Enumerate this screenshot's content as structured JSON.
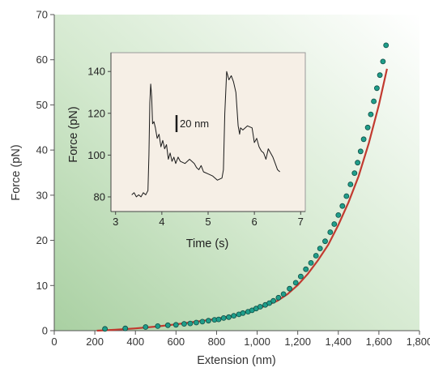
{
  "chart_data": [
    {
      "type": "scatter",
      "title": "",
      "xlabel": "Extension (nm)",
      "ylabel": "Force (pN)",
      "xlim": [
        0,
        1800
      ],
      "ylim": [
        0,
        70
      ],
      "x_ticks": [
        0,
        200,
        400,
        600,
        800,
        1000,
        1200,
        1400,
        1600,
        1800
      ],
      "x_tick_labels": [
        "0",
        "200",
        "400",
        "600",
        "800",
        "1,000",
        "1,200",
        "1,400",
        "1,600",
        "1,800"
      ],
      "y_ticks": [
        0,
        10,
        20,
        30,
        40,
        50,
        60,
        70
      ],
      "y_tick_labels": [
        "0",
        "10",
        "20",
        "30",
        "40",
        "50",
        "60",
        "70"
      ],
      "grid": false,
      "background": "green gradient",
      "series": [
        {
          "kind": "points",
          "marker_color": "#1f9e8a",
          "x": [
            250,
            350,
            450,
            510,
            560,
            600,
            640,
            670,
            700,
            730,
            760,
            790,
            810,
            835,
            860,
            885,
            910,
            930,
            955,
            975,
            995,
            1015,
            1040,
            1060,
            1080,
            1105,
            1130,
            1160,
            1190,
            1215,
            1240,
            1265,
            1290,
            1310,
            1335,
            1360,
            1380,
            1400,
            1420,
            1440,
            1460,
            1480,
            1495,
            1510,
            1525,
            1545,
            1560,
            1575,
            1590,
            1605,
            1620,
            1635
          ],
          "y": [
            0.4,
            0.5,
            0.8,
            1.0,
            1.2,
            1.3,
            1.5,
            1.6,
            1.8,
            2.0,
            2.2,
            2.4,
            2.5,
            2.8,
            3.0,
            3.3,
            3.6,
            3.9,
            4.2,
            4.5,
            4.9,
            5.3,
            5.7,
            6.1,
            6.6,
            7.3,
            8.1,
            9.3,
            10.6,
            12.0,
            13.6,
            15.0,
            16.6,
            18.2,
            19.8,
            21.8,
            23.6,
            25.6,
            27.6,
            29.8,
            32.4,
            34.9,
            37.2,
            39.7,
            42.4,
            45.0,
            47.9,
            50.8,
            53.7,
            56.6,
            59.6,
            63.2
          ]
        },
        {
          "kind": "fit-line",
          "line_color": "#c23a30",
          "x": [
            210,
            300,
            400,
            500,
            600,
            700,
            800,
            900,
            1000,
            1100,
            1150,
            1200,
            1250,
            1300,
            1350,
            1400,
            1450,
            1500,
            1550,
            1600,
            1640
          ],
          "y": [
            0,
            0.2,
            0.5,
            0.9,
            1.4,
            2.0,
            2.6,
            3.5,
            4.8,
            6.6,
            8.1,
            10.1,
            12.6,
            15.6,
            19.0,
            23.4,
            28.4,
            34.2,
            41.5,
            50.0,
            58.0
          ]
        }
      ]
    },
    {
      "type": "line",
      "title": "",
      "xlabel": "Time (s)",
      "ylabel": "Force (pN)",
      "xlim": [
        2.9,
        7.1
      ],
      "ylim": [
        73,
        149
      ],
      "x_ticks": [
        3,
        4,
        5,
        6,
        7
      ],
      "x_tick_labels": [
        "3",
        "4",
        "5",
        "6",
        "7"
      ],
      "y_ticks": [
        80,
        100,
        120,
        140
      ],
      "y_tick_labels": [
        "80",
        "100",
        "120",
        "140"
      ],
      "scale_bar_label": "20 nm",
      "background_color": "#f6efe6",
      "series": [
        {
          "line_color": "#1a1a1a",
          "x": [
            3.35,
            3.4,
            3.45,
            3.5,
            3.55,
            3.6,
            3.65,
            3.7,
            3.72,
            3.74,
            3.76,
            3.78,
            3.8,
            3.83,
            3.86,
            3.9,
            3.94,
            3.98,
            4.02,
            4.06,
            4.1,
            4.14,
            4.18,
            4.22,
            4.26,
            4.3,
            4.35,
            4.4,
            4.5,
            4.6,
            4.7,
            4.75,
            4.8,
            4.85,
            4.9,
            5.0,
            5.1,
            5.2,
            5.3,
            5.33,
            5.36,
            5.4,
            5.45,
            5.5,
            5.55,
            5.6,
            5.65,
            5.68,
            5.7,
            5.75,
            5.85,
            5.95,
            6.0,
            6.05,
            6.1,
            6.15,
            6.2,
            6.25,
            6.3,
            6.4,
            6.45,
            6.5,
            6.55
          ],
          "y": [
            81,
            82,
            80,
            81,
            80,
            82,
            81,
            83,
            100,
            125,
            134,
            128,
            115,
            116,
            113,
            108,
            110,
            104,
            107,
            103,
            105,
            98,
            101,
            97,
            99,
            96,
            99,
            97,
            96,
            98,
            96,
            94,
            93,
            95,
            92,
            91,
            90,
            88,
            89,
            93,
            120,
            140,
            136,
            138,
            135,
            130,
            114,
            110,
            113,
            112,
            114,
            113,
            106,
            108,
            104,
            102,
            101,
            98,
            103,
            99,
            96,
            93,
            92
          ]
        }
      ]
    }
  ]
}
